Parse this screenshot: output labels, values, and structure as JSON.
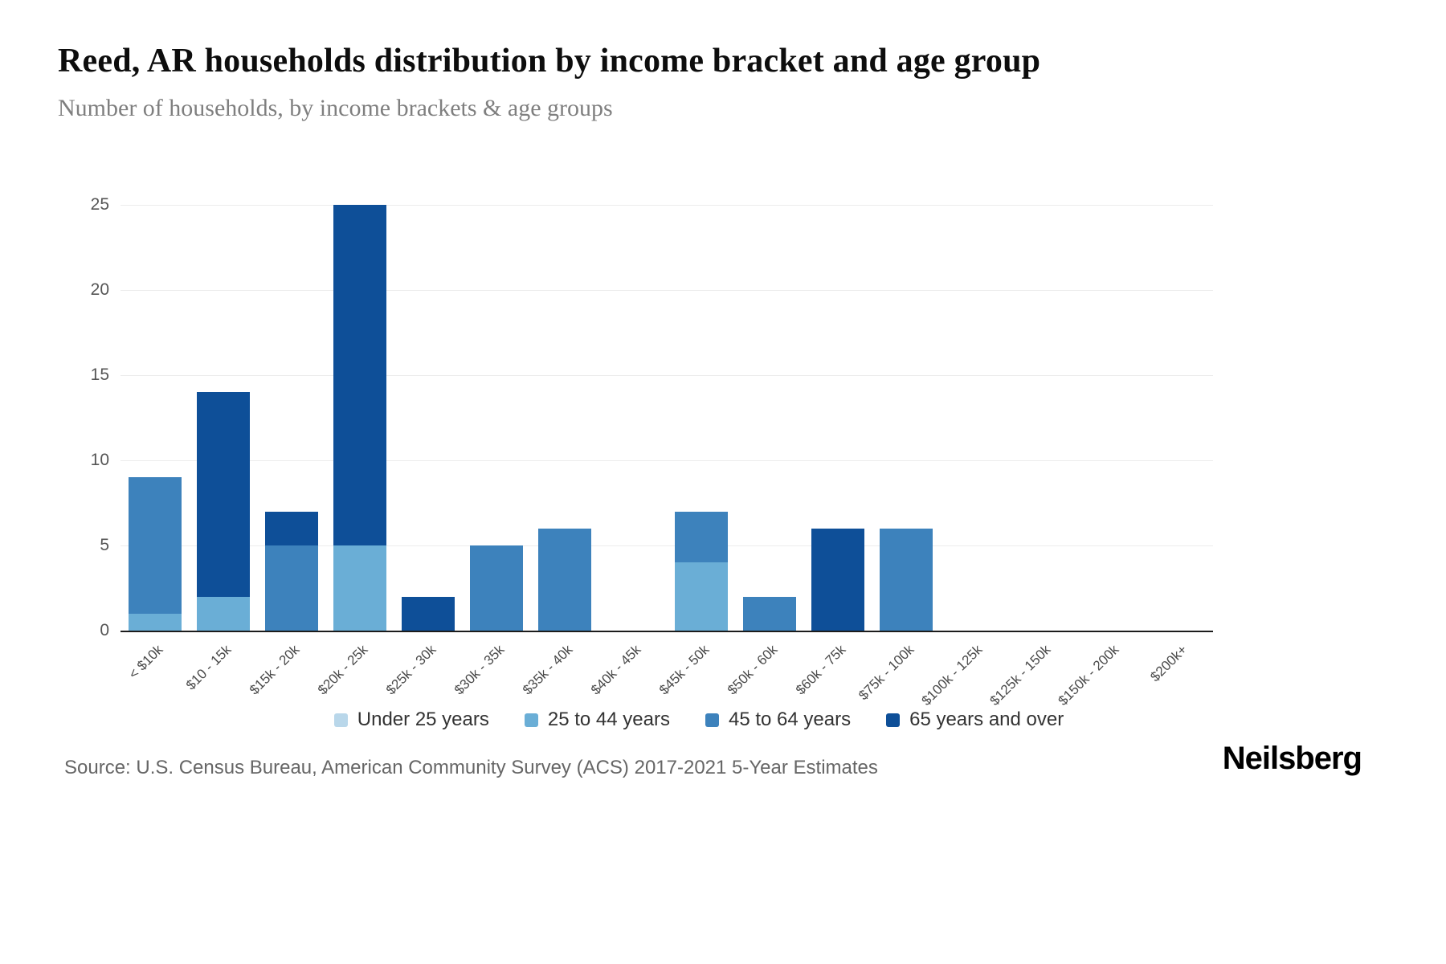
{
  "page": {
    "title": "Reed, AR households distribution by income bracket and age group",
    "subtitle": "Number of households, by income brackets & age groups",
    "source": "Source: U.S. Census Bureau, American Community Survey (ACS) 2017-2021 5-Year Estimates",
    "brand": "Neilsberg"
  },
  "chart_data": {
    "type": "bar",
    "stacked": true,
    "title": "Reed, AR households distribution by income bracket and age group",
    "xlabel": "",
    "ylabel": "Number of households",
    "ylim": [
      0,
      25
    ],
    "yticks": [
      0,
      5,
      10,
      15,
      20,
      25
    ],
    "grid": true,
    "legend_position": "bottom",
    "categories": [
      "< $10k",
      "$10 - 15k",
      "$15k - 20k",
      "$20k - 25k",
      "$25k - 30k",
      "$30k - 35k",
      "$35k - 40k",
      "$40k - 45k",
      "$45k - 50k",
      "$50k - 60k",
      "$60k - 75k",
      "$75k - 100k",
      "$100k - 125k",
      "$125k - 150k",
      "$150k - 200k",
      "$200k+"
    ],
    "series": [
      {
        "name": "Under 25 years",
        "color": "#b9d7ea",
        "values": [
          0,
          0,
          0,
          0,
          0,
          0,
          0,
          0,
          0,
          0,
          0,
          0,
          0,
          0,
          0,
          0
        ]
      },
      {
        "name": "25 to 44 years",
        "color": "#6aaed6",
        "values": [
          1,
          2,
          0,
          5,
          0,
          0,
          0,
          0,
          4,
          0,
          0,
          0,
          0,
          0,
          0,
          0
        ]
      },
      {
        "name": "45 to 64 years",
        "color": "#3d82bc",
        "values": [
          8,
          0,
          5,
          0,
          0,
          5,
          6,
          0,
          3,
          2,
          0,
          6,
          0,
          0,
          0,
          0
        ]
      },
      {
        "name": "65 years and over",
        "color": "#0e4f98",
        "values": [
          0,
          12,
          2,
          20,
          2,
          0,
          0,
          0,
          0,
          0,
          6,
          0,
          0,
          0,
          0,
          0
        ]
      }
    ]
  }
}
